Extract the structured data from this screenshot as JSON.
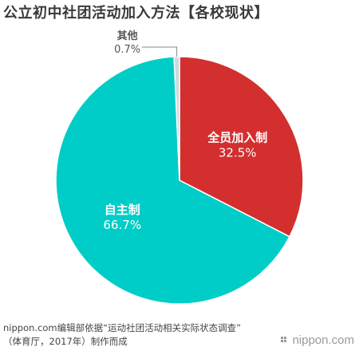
{
  "title": "公立初中社团活动加入方法【各校现状】",
  "chart_data": {
    "type": "pie",
    "slices": [
      {
        "label": "全员加入制",
        "value": 32.5,
        "display": "32.5%",
        "color": "#d32f2f"
      },
      {
        "label": "自主制",
        "value": 66.7,
        "display": "66.7%",
        "color": "#00cdc7"
      },
      {
        "label": "其他",
        "value": 0.7,
        "display": "0.7%",
        "color": "#cfd8dc"
      }
    ]
  },
  "source": {
    "line1": "nippon.com编辑部依据“运动社团活动相关实际状态调查”",
    "line2": "（体育厅，2017年）制作而成"
  },
  "brand": {
    "label": "nippon.com"
  }
}
